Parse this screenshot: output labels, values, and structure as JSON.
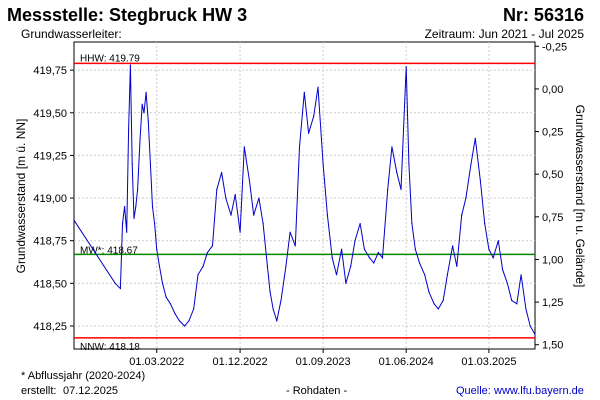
{
  "header": {
    "title_left": "Messstelle: Stegbruck HW 3",
    "title_right": "Nr: 56316",
    "subtitle_left": "Grundwasserleiter:",
    "subtitle_right": "Zeitraum: Jun 2021 - Jul 2025"
  },
  "footer": {
    "note": "* Abflussjahr (2020-2024)",
    "created_label": "erstellt:",
    "created_date": "07.12.2025",
    "data_status": "- Rohdaten -",
    "source_label": "Quelle:",
    "source_link": "www.lfu.bayern.de"
  },
  "colors": {
    "series": "#0000cc",
    "hhw": "#ff0000",
    "nnw": "#ff0000",
    "mw": "#008800",
    "grid": "#cccccc"
  },
  "chart_data": {
    "type": "line",
    "ylabel": "Grundwasserstand [m ü. NN]",
    "y2label": "Grundwasserstand [m u. Gelände]",
    "ylim": [
      418.115,
      419.915
    ],
    "y2lim": [
      1.525,
      -0.275
    ],
    "yticks": [
      "418,25",
      "418,50",
      "418,75",
      "419,00",
      "419,25",
      "419,50",
      "419,75"
    ],
    "yticks_values": [
      418.25,
      418.5,
      418.75,
      419.0,
      419.25,
      419.5,
      419.75
    ],
    "y2ticks": [
      "-0,25",
      "0,00",
      "0,25",
      "0,50",
      "0,75",
      "1,00",
      "1,25",
      "1,50"
    ],
    "y2ticks_values": [
      -0.25,
      0.0,
      0.25,
      0.5,
      0.75,
      1.0,
      1.25,
      1.5
    ],
    "xlim": [
      "2021-06-01",
      "2025-07-31"
    ],
    "xticks": [
      "01.03.2022",
      "01.12.2022",
      "01.09.2023",
      "01.06.2024",
      "01.03.2025"
    ],
    "xticks_values": [
      "2022-03-01",
      "2022-12-01",
      "2023-09-01",
      "2024-06-01",
      "2025-03-01"
    ],
    "grid": true,
    "reference_lines": [
      {
        "label": "HHW: 419.79",
        "value": 419.79,
        "key": "hhw"
      },
      {
        "label": "MW*: 418.67",
        "value": 418.67,
        "key": "mw"
      },
      {
        "label": "NNW: 418.18",
        "value": 418.18,
        "key": "nnw"
      }
    ],
    "series": [
      {
        "x": [
          "2021-06-01",
          "2021-10-15",
          "2021-11-01",
          "2021-11-08",
          "2021-11-15",
          "2021-11-22",
          "2021-11-28",
          "2021-12-04",
          "2021-12-10",
          "2021-12-16",
          "2021-12-22",
          "2021-12-28",
          "2022-01-05",
          "2022-01-12",
          "2022-01-18",
          "2022-01-25",
          "2022-02-01",
          "2022-02-08",
          "2022-02-15",
          "2022-02-22",
          "2022-03-01",
          "2022-03-10",
          "2022-03-20",
          "2022-04-01",
          "2022-04-15",
          "2022-05-01",
          "2022-05-15",
          "2022-06-01",
          "2022-06-15",
          "2022-07-01",
          "2022-07-15",
          "2022-08-01",
          "2022-08-15",
          "2022-09-01",
          "2022-09-15",
          "2022-10-01",
          "2022-10-15",
          "2022-11-01",
          "2022-11-15",
          "2022-12-01",
          "2022-12-15",
          "2023-01-01",
          "2023-01-15",
          "2023-02-01",
          "2023-02-15",
          "2023-03-01",
          "2023-03-10",
          "2023-03-20",
          "2023-04-01",
          "2023-04-15",
          "2023-05-01",
          "2023-05-15",
          "2023-06-01",
          "2023-06-15",
          "2023-07-01",
          "2023-07-15",
          "2023-08-01",
          "2023-08-15",
          "2023-09-01",
          "2023-09-15",
          "2023-10-01",
          "2023-10-15",
          "2023-11-01",
          "2023-11-15",
          "2023-12-01",
          "2023-12-15",
          "2024-01-01",
          "2024-01-15",
          "2024-02-01",
          "2024-02-15",
          "2024-03-01",
          "2024-03-15",
          "2024-04-01",
          "2024-04-15",
          "2024-05-01",
          "2024-05-15",
          "2024-06-01",
          "2024-06-10",
          "2024-06-20",
          "2024-07-01",
          "2024-07-15",
          "2024-08-01",
          "2024-08-15",
          "2024-09-01",
          "2024-09-15",
          "2024-10-01",
          "2024-10-15",
          "2024-11-01",
          "2024-11-15",
          "2024-12-01",
          "2024-12-15",
          "2025-01-01",
          "2025-01-15",
          "2025-02-01",
          "2025-02-15",
          "2025-03-01",
          "2025-03-15",
          "2025-04-01",
          "2025-04-15",
          "2025-05-01",
          "2025-05-15",
          "2025-06-01",
          "2025-06-15",
          "2025-07-01",
          "2025-07-15",
          "2025-07-31"
        ],
        "y": [
          418.87,
          418.5,
          418.47,
          418.85,
          418.95,
          418.8,
          419.4,
          419.78,
          419.2,
          418.88,
          418.95,
          419.05,
          419.35,
          419.55,
          419.5,
          419.62,
          419.45,
          419.2,
          418.95,
          418.85,
          418.7,
          418.6,
          418.5,
          418.42,
          418.38,
          418.32,
          418.28,
          418.25,
          418.28,
          418.35,
          418.55,
          418.6,
          418.68,
          418.72,
          419.05,
          419.15,
          419.0,
          418.9,
          419.02,
          418.8,
          419.3,
          419.1,
          418.9,
          419.0,
          418.85,
          418.6,
          418.45,
          418.35,
          418.28,
          418.4,
          418.6,
          418.8,
          418.72,
          419.3,
          419.62,
          419.38,
          419.48,
          419.65,
          419.2,
          418.9,
          418.65,
          418.55,
          418.7,
          418.5,
          418.6,
          418.75,
          418.85,
          418.7,
          418.65,
          418.62,
          418.68,
          418.65,
          419.05,
          419.3,
          419.15,
          419.05,
          419.77,
          419.2,
          418.85,
          418.7,
          418.62,
          418.55,
          418.45,
          418.38,
          418.35,
          418.4,
          418.55,
          418.72,
          418.6,
          418.9,
          419.0,
          419.2,
          419.35,
          419.1,
          418.85,
          418.7,
          418.65,
          418.75,
          418.58,
          418.5,
          418.4,
          418.38,
          418.55,
          418.35,
          418.25,
          418.2
        ]
      }
    ]
  }
}
